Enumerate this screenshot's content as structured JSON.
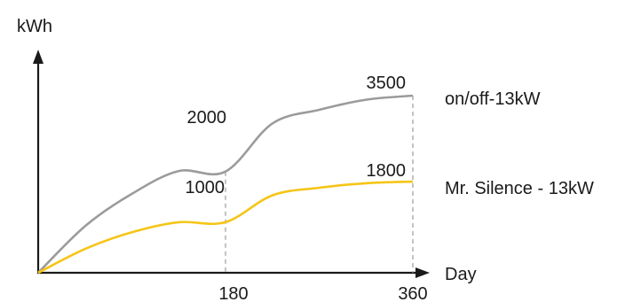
{
  "chart_data": {
    "type": "line",
    "xlabel": "Day",
    "ylabel": "kWh",
    "xlim": [
      0,
      360
    ],
    "ylim": [
      0,
      3500
    ],
    "x_ticks": [
      "180",
      "360"
    ],
    "grid": false,
    "legend": "right",
    "series": [
      {
        "name": "on/off-13kW",
        "color": "#9b9b9b",
        "x": [
          0,
          45,
          90,
          135,
          180,
          225,
          270,
          315,
          360
        ],
        "values": [
          0,
          920,
          1560,
          2010,
          2000,
          2950,
          3220,
          3420,
          3500
        ]
      },
      {
        "name": "Mr. Silence - 13kW",
        "color": "#f5c518",
        "x": [
          0,
          45,
          90,
          135,
          180,
          225,
          270,
          315,
          360
        ],
        "values": [
          0,
          470,
          800,
          1000,
          1000,
          1530,
          1680,
          1770,
          1800
        ]
      }
    ],
    "annotations": [
      "2000",
      "3500",
      "1000",
      "1800"
    ]
  }
}
